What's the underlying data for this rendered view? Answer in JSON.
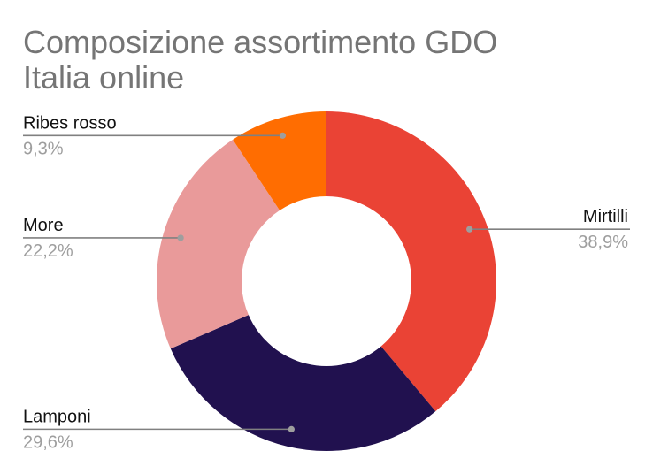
{
  "chart_data": {
    "type": "pie",
    "donut": true,
    "title": [
      "Composizione assortimento GDO",
      "Italia online"
    ],
    "slices": [
      {
        "label": "Mirtilli",
        "value": 38.9,
        "display": "38,9%",
        "color": "#EA4335"
      },
      {
        "label": "Lamponi",
        "value": 29.6,
        "display": "29,6%",
        "color": "#21114F"
      },
      {
        "label": "More",
        "value": 22.2,
        "display": "22,2%",
        "color": "#E99A9A"
      },
      {
        "label": "Ribes rosso",
        "value": 9.3,
        "display": "9,3%",
        "color": "#FF6D01"
      }
    ],
    "legend": "none",
    "label_style": "leader-lines"
  }
}
